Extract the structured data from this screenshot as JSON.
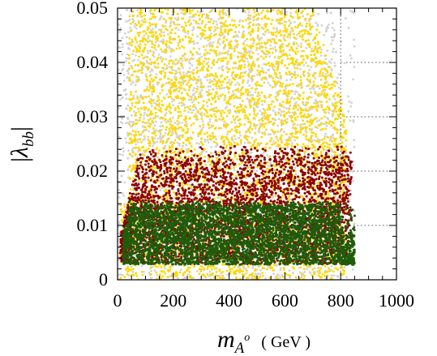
{
  "chart_data": {
    "type": "scatter",
    "xlim": [
      0,
      1000
    ],
    "ylim": [
      0,
      0.05
    ],
    "x_ticks": [
      "0",
      "200",
      "400",
      "600",
      "800",
      "1000"
    ],
    "y_ticks": [
      "0",
      "0.01",
      "0.02",
      "0.03",
      "0.04",
      "0.05"
    ],
    "xlabel": {
      "symbol": "m",
      "sub": "A",
      "sup": "o",
      "unit": "( GeV )"
    },
    "ylabel": {
      "bar": "|",
      "symbol": "λ",
      "sub": "bb"
    },
    "grid": "dotted, right portion only",
    "series": [
      {
        "color": "#d3d3d3",
        "region": {
          "x": [
            0,
            850
          ],
          "y_min": 0.0,
          "y_max": 0.05,
          "y_max_at_x1000": 0.05
        },
        "density": "dense background, thinning beyond x = 780"
      },
      {
        "color": "#ffd700",
        "region": {
          "x": [
            10,
            820
          ],
          "y_min": 0.0,
          "y_max": 0.05,
          "y_max_at_x800": 0.04
        },
        "density": "dense"
      },
      {
        "color": "#8b0000",
        "region": {
          "x": [
            10,
            840
          ],
          "y_min": 0.003,
          "y_max": 0.024
        },
        "density": "dense band, rising sharply at low x"
      },
      {
        "color": "#1f5c0b",
        "region": {
          "x": [
            20,
            850
          ],
          "y_min": 0.0028,
          "y_max": 0.014
        },
        "density": "dense band"
      }
    ]
  }
}
